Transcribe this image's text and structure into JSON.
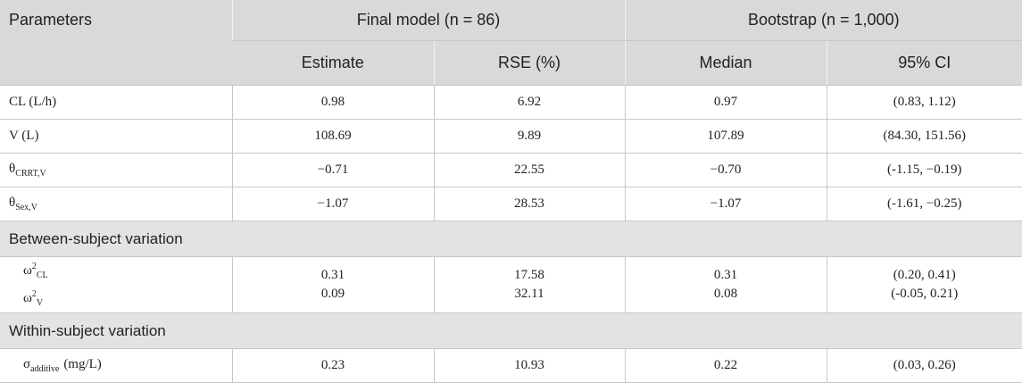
{
  "header": {
    "title": "Parameters",
    "groups": [
      "Final model (n = 86)",
      "Bootstrap (n = 1,000)"
    ],
    "columns": [
      "Estimate",
      "RSE (%)",
      "Median",
      "95% CI"
    ]
  },
  "rows": [
    {
      "label": "CL (L/h)",
      "cells": [
        "0.98",
        "6.92",
        "0.97",
        "(0.83, 1.12)"
      ]
    },
    {
      "label": "V (L)",
      "cells": [
        "108.69",
        "9.89",
        "107.89",
        "(84.30, 151.56)"
      ]
    },
    {
      "label": {
        "base": "θ",
        "sub": "CRRT,V"
      },
      "cells": [
        "−0.71",
        "22.55",
        "−0.70",
        "(-1.15, −0.19)"
      ]
    },
    {
      "label": {
        "base": "θ",
        "sub": "Sex,V"
      },
      "cells": [
        "−1.07",
        "28.53",
        "−1.07",
        "(-1.61, −0.25)"
      ]
    },
    {
      "section": "Between-subject variation"
    },
    {
      "label": [
        {
          "base": "ω",
          "sup": "2",
          "sub": "CL"
        },
        {
          "base": "ω",
          "sup": "2",
          "sub": "V"
        }
      ],
      "cells": [
        [
          "0.31",
          "0.09"
        ],
        [
          "17.58",
          "32.11"
        ],
        [
          "0.31",
          "0.08"
        ],
        [
          "(0.20, 0.41)",
          "(-0.05, 0.21)"
        ]
      ]
    },
    {
      "section": "Within-subject variation"
    },
    {
      "label": {
        "base": "σ",
        "sub": "additive",
        "suffix": "(mg/L)"
      },
      "cells": [
        "0.23",
        "10.93",
        "0.22",
        "(0.03, 0.26)"
      ]
    }
  ]
}
